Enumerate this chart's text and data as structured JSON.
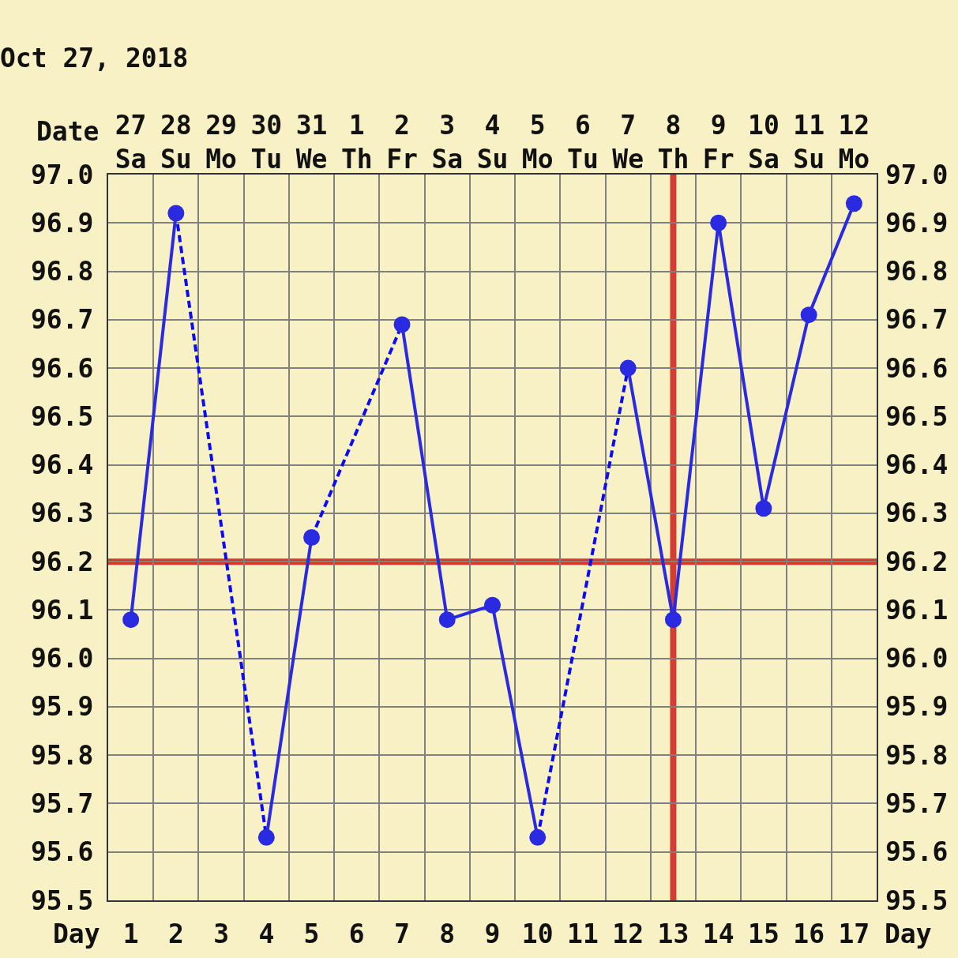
{
  "chart_data": {
    "type": "line",
    "title": "Oct 27, 2018",
    "xlabel": "Day",
    "x2label": "Date",
    "xlim": [
      0.5,
      17.5
    ],
    "xticks": [
      {
        "value": 0.5,
        "label": null
      },
      1,
      {
        "value": 1.5,
        "label": null
      },
      2,
      {
        "value": 2.5,
        "label": null
      },
      3,
      {
        "value": 3.5,
        "label": null
      },
      4,
      {
        "value": 4.5,
        "label": null
      },
      5,
      {
        "value": 5.5,
        "label": null
      },
      6,
      {
        "value": 6.5,
        "label": null
      },
      7,
      {
        "value": 7.5,
        "label": null
      },
      8,
      {
        "value": 8.5,
        "label": null
      },
      9,
      {
        "value": 9.5,
        "label": null
      },
      10,
      {
        "value": 10.5,
        "label": null
      },
      11,
      {
        "value": 11.5,
        "label": null
      },
      12,
      {
        "value": 12.5,
        "label": null
      },
      13,
      {
        "value": 13.5,
        "label": null
      },
      14,
      {
        "value": 14.5,
        "label": null
      },
      15,
      {
        "value": 15.5,
        "label": null
      },
      16,
      {
        "value": 16.5,
        "label": null
      },
      17,
      {
        "value": 17.5,
        "label": null
      }
    ],
    "x2lim": [
      "2018-10-26T12:00",
      "2018-11-12T12:00"
    ],
    "x2ticks": [
      {
        "value": "2018-10-27",
        "label": "27\nSa"
      },
      {
        "value": "2018-10-28",
        "label": "28\nSu"
      },
      {
        "value": "2018-10-29",
        "label": "29\nMo"
      },
      {
        "value": "2018-10-30",
        "label": "30\nTu"
      },
      {
        "value": "2018-10-31",
        "label": "31\nWe"
      },
      {
        "value": "2018-11-01",
        "label": "1\nTh"
      },
      {
        "value": "2018-11-02",
        "label": "2\nFr"
      },
      {
        "value": "2018-11-03",
        "label": "3\nSa"
      },
      {
        "value": "2018-11-04",
        "label": "4\nSu"
      },
      {
        "value": "2018-11-05",
        "label": "5\nMo"
      },
      {
        "value": "2018-11-06",
        "label": "6\nTu"
      },
      {
        "value": "2018-11-07",
        "label": "7\nWe"
      },
      {
        "value": "2018-11-08",
        "label": "8\nTh"
      },
      {
        "value": "2018-11-09",
        "label": "9\nFr"
      },
      {
        "value": "2018-11-10",
        "label": "10\nSa"
      },
      {
        "value": "2018-11-11",
        "label": "11\nSu"
      },
      {
        "value": "2018-11-12",
        "label": "12\nMo"
      }
    ],
    "ylim": [
      95.5,
      97.0
    ],
    "yticks": [
      95.5,
      95.6,
      95.7,
      95.8,
      95.9,
      {
        "value": 96.0,
        "label": "96.0"
      },
      96.1,
      96.2,
      96.3,
      96.4,
      96.5,
      96.6,
      96.7,
      96.8,
      96.9,
      {
        "value": 97.0,
        "label": "97.0"
      }
    ],
    "y2lim": [
      95.5,
      97.0
    ],
    "y2ticks": [
      95.5,
      95.6,
      95.7,
      95.8,
      95.9,
      {
        "value": 96.0,
        "label": "96.0"
      },
      96.1,
      96.2,
      96.3,
      96.4,
      96.5,
      96.6,
      96.7,
      96.8,
      96.9,
      {
        "value": 97.0,
        "label": "97.0"
      }
    ],
    "series": [
      {
        "color": "#2a2ae0",
        "x": [
          1,
          2,
          3,
          4,
          5,
          6,
          7,
          8,
          9,
          10,
          11,
          12,
          13,
          14,
          15,
          16,
          17
        ],
        "values": [
          96.08,
          96.92,
          null,
          95.63,
          96.25,
          null,
          96.69,
          96.08,
          96.11,
          95.63,
          null,
          96.6,
          96.08,
          96.9,
          96.31,
          96.71,
          96.94
        ]
      },
      {
        "color": "#0c0cf0",
        "x": [
          2,
          4
        ],
        "values": [
          96.92,
          95.63
        ],
        "line_style": "dotted",
        "marker": "none"
      },
      {
        "color": "#0c0cf0",
        "x": [
          5,
          7
        ],
        "values": [
          96.25,
          96.69
        ],
        "line_style": "dotted",
        "marker": "none"
      },
      {
        "color": "#0c0cf0",
        "x": [
          10,
          12
        ],
        "values": [
          95.63,
          96.6
        ],
        "line_style": "dotted",
        "marker": "none"
      }
    ],
    "ref_lines": [
      {
        "axis": "y",
        "value": 96.2,
        "color": "#d9372c"
      },
      {
        "axis": "x",
        "value": 13,
        "color": "#d23e33"
      }
    ],
    "grid": true,
    "marker": "circle",
    "line_style": "solid"
  }
}
